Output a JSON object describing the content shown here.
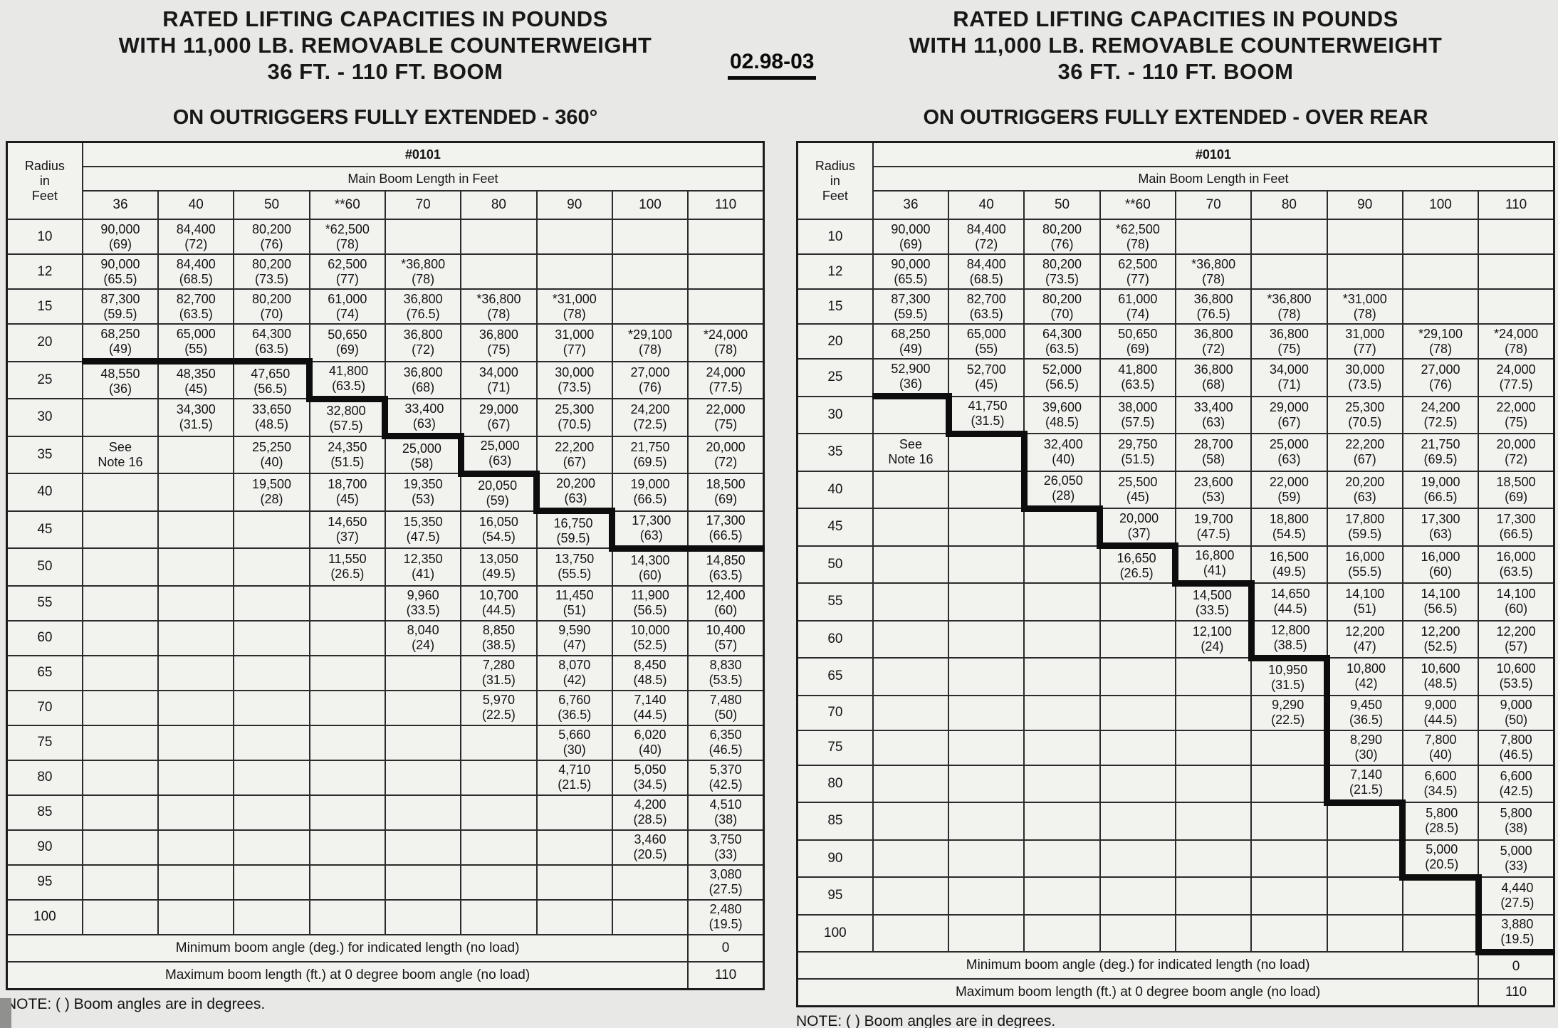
{
  "page_code": "02.98-03",
  "tables": [
    {
      "title_lines": [
        "RATED LIFTING CAPACITIES IN POUNDS",
        "WITH 11,000 LB. REMOVABLE COUNTERWEIGHT",
        "36 FT. - 110 FT. BOOM"
      ],
      "subtitle": "ON OUTRIGGERS FULLY EXTENDED - 360°",
      "corner_lines": [
        "Radius",
        "in",
        "Feet"
      ],
      "chart_header": "#0101",
      "boom_header": "Main Boom Length in Feet",
      "columns": [
        "36",
        "40",
        "50",
        "**60",
        "70",
        "80",
        "90",
        "100",
        "110"
      ],
      "col_keys": [
        "36",
        "40",
        "50",
        "60",
        "70",
        "80",
        "90",
        "100",
        "110"
      ],
      "rows": [
        {
          "radius": "10",
          "cells": [
            "90,000|(69)",
            "84,400|(72)",
            "80,200|(76)",
            "*62,500|(78)",
            null,
            null,
            null,
            null,
            null
          ]
        },
        {
          "radius": "12",
          "cells": [
            "90,000|(65.5)",
            "84,400|(68.5)",
            "80,200|(73.5)",
            "62,500|(77)",
            "*36,800|(78)",
            null,
            null,
            null,
            null
          ]
        },
        {
          "radius": "15",
          "cells": [
            "87,300|(59.5)",
            "82,700|(63.5)",
            "80,200|(70)",
            "61,000|(74)",
            "36,800|(76.5)",
            "*36,800|(78)",
            "*31,000|(78)",
            null,
            null
          ]
        },
        {
          "radius": "20",
          "cells": [
            "68,250|(49)",
            "65,000|(55)",
            "64,300|(63.5)",
            "50,650|(69)",
            "36,800|(72)",
            "36,800|(75)",
            "31,000|(77)",
            "*29,100|(78)",
            "*24,000|(78)"
          ]
        },
        {
          "radius": "25",
          "cells": [
            "48,550|(36)",
            "48,350|(45)",
            "47,650|(56.5)",
            "41,800|(63.5)",
            "36,800|(68)",
            "34,000|(71)",
            "30,000|(73.5)",
            "27,000|(76)",
            "24,000|(77.5)"
          ]
        },
        {
          "radius": "30",
          "cells": [
            null,
            "34,300|(31.5)",
            "33,650|(48.5)",
            "32,800|(57.5)",
            "33,400|(63)",
            "29,000|(67)",
            "25,300|(70.5)",
            "24,200|(72.5)",
            "22,000|(75)"
          ]
        },
        {
          "radius": "35",
          "cells": [
            "See|Note 16",
            null,
            "25,250|(40)",
            "24,350|(51.5)",
            "25,000|(58)",
            "25,000|(63)",
            "22,200|(67)",
            "21,750|(69.5)",
            "20,000|(72)"
          ]
        },
        {
          "radius": "40",
          "cells": [
            null,
            null,
            "19,500|(28)",
            "18,700|(45)",
            "19,350|(53)",
            "20,050|(59)",
            "20,200|(63)",
            "19,000|(66.5)",
            "18,500|(69)"
          ]
        },
        {
          "radius": "45",
          "cells": [
            null,
            null,
            null,
            "14,650|(37)",
            "15,350|(47.5)",
            "16,050|(54.5)",
            "16,750|(59.5)",
            "17,300|(63)",
            "17,300|(66.5)"
          ]
        },
        {
          "radius": "50",
          "cells": [
            null,
            null,
            null,
            "11,550|(26.5)",
            "12,350|(41)",
            "13,050|(49.5)",
            "13,750|(55.5)",
            "14,300|(60)",
            "14,850|(63.5)"
          ]
        },
        {
          "radius": "55",
          "cells": [
            null,
            null,
            null,
            null,
            "9,960|(33.5)",
            "10,700|(44.5)",
            "11,450|(51)",
            "11,900|(56.5)",
            "12,400|(60)"
          ]
        },
        {
          "radius": "60",
          "cells": [
            null,
            null,
            null,
            null,
            "8,040|(24)",
            "8,850|(38.5)",
            "9,590|(47)",
            "10,000|(52.5)",
            "10,400|(57)"
          ]
        },
        {
          "radius": "65",
          "cells": [
            null,
            null,
            null,
            null,
            null,
            "7,280|(31.5)",
            "8,070|(42)",
            "8,450|(48.5)",
            "8,830|(53.5)"
          ]
        },
        {
          "radius": "70",
          "cells": [
            null,
            null,
            null,
            null,
            null,
            "5,970|(22.5)",
            "6,760|(36.5)",
            "7,140|(44.5)",
            "7,480|(50)"
          ]
        },
        {
          "radius": "75",
          "cells": [
            null,
            null,
            null,
            null,
            null,
            null,
            "5,660|(30)",
            "6,020|(40)",
            "6,350|(46.5)"
          ]
        },
        {
          "radius": "80",
          "cells": [
            null,
            null,
            null,
            null,
            null,
            null,
            "4,710|(21.5)",
            "5,050|(34.5)",
            "5,370|(42.5)"
          ]
        },
        {
          "radius": "85",
          "cells": [
            null,
            null,
            null,
            null,
            null,
            null,
            null,
            "4,200|(28.5)",
            "4,510|(38)"
          ]
        },
        {
          "radius": "90",
          "cells": [
            null,
            null,
            null,
            null,
            null,
            null,
            null,
            "3,460|(20.5)",
            "3,750|(33)"
          ]
        },
        {
          "radius": "95",
          "cells": [
            null,
            null,
            null,
            null,
            null,
            null,
            null,
            null,
            "3,080|(27.5)"
          ]
        },
        {
          "radius": "100",
          "cells": [
            null,
            null,
            null,
            null,
            null,
            null,
            null,
            null,
            "2,480|(19.5)"
          ]
        }
      ],
      "footer": [
        {
          "label": "Minimum boom angle (deg.) for indicated length (no load)",
          "value": "0"
        },
        {
          "label": "Maximum boom length (ft.) at 0 degree boom angle (no load)",
          "value": "110"
        }
      ],
      "thick_bottom": [
        "20-36",
        "20-40",
        "20-50",
        "25-60",
        "30-70",
        "35-80",
        "40-90",
        "45-100",
        "45-110"
      ],
      "thick_right": [
        "25-50",
        "30-60",
        "35-70",
        "40-80",
        "45-90"
      ],
      "note": "NOTE: ( ) Boom angles are in degrees."
    },
    {
      "title_lines": [
        "RATED LIFTING CAPACITIES IN POUNDS",
        "WITH 11,000 LB. REMOVABLE COUNTERWEIGHT",
        "36 FT. - 110 FT. BOOM"
      ],
      "subtitle": "ON OUTRIGGERS FULLY EXTENDED - OVER REAR",
      "corner_lines": [
        "Radius",
        "in",
        "Feet"
      ],
      "chart_header": "#0101",
      "boom_header": "Main Boom Length in Feet",
      "columns": [
        "36",
        "40",
        "50",
        "**60",
        "70",
        "80",
        "90",
        "100",
        "110"
      ],
      "col_keys": [
        "36",
        "40",
        "50",
        "60",
        "70",
        "80",
        "90",
        "100",
        "110"
      ],
      "rows": [
        {
          "radius": "10",
          "cells": [
            "90,000|(69)",
            "84,400|(72)",
            "80,200|(76)",
            "*62,500|(78)",
            null,
            null,
            null,
            null,
            null
          ]
        },
        {
          "radius": "12",
          "cells": [
            "90,000|(65.5)",
            "84,400|(68.5)",
            "80,200|(73.5)",
            "62,500|(77)",
            "*36,800|(78)",
            null,
            null,
            null,
            null
          ]
        },
        {
          "radius": "15",
          "cells": [
            "87,300|(59.5)",
            "82,700|(63.5)",
            "80,200|(70)",
            "61,000|(74)",
            "36,800|(76.5)",
            "*36,800|(78)",
            "*31,000|(78)",
            null,
            null
          ]
        },
        {
          "radius": "20",
          "cells": [
            "68,250|(49)",
            "65,000|(55)",
            "64,300|(63.5)",
            "50,650|(69)",
            "36,800|(72)",
            "36,800|(75)",
            "31,000|(77)",
            "*29,100|(78)",
            "*24,000|(78)"
          ]
        },
        {
          "radius": "25",
          "cells": [
            "52,900|(36)",
            "52,700|(45)",
            "52,000|(56.5)",
            "41,800|(63.5)",
            "36,800|(68)",
            "34,000|(71)",
            "30,000|(73.5)",
            "27,000|(76)",
            "24,000|(77.5)"
          ]
        },
        {
          "radius": "30",
          "cells": [
            null,
            "41,750|(31.5)",
            "39,600|(48.5)",
            "38,000|(57.5)",
            "33,400|(63)",
            "29,000|(67)",
            "25,300|(70.5)",
            "24,200|(72.5)",
            "22,000|(75)"
          ]
        },
        {
          "radius": "35",
          "cells": [
            "See|Note 16",
            null,
            "32,400|(40)",
            "29,750|(51.5)",
            "28,700|(58)",
            "25,000|(63)",
            "22,200|(67)",
            "21,750|(69.5)",
            "20,000|(72)"
          ]
        },
        {
          "radius": "40",
          "cells": [
            null,
            null,
            "26,050|(28)",
            "25,500|(45)",
            "23,600|(53)",
            "22,000|(59)",
            "20,200|(63)",
            "19,000|(66.5)",
            "18,500|(69)"
          ]
        },
        {
          "radius": "45",
          "cells": [
            null,
            null,
            null,
            "20,000|(37)",
            "19,700|(47.5)",
            "18,800|(54.5)",
            "17,800|(59.5)",
            "17,300|(63)",
            "17,300|(66.5)"
          ]
        },
        {
          "radius": "50",
          "cells": [
            null,
            null,
            null,
            "16,650|(26.5)",
            "16,800|(41)",
            "16,500|(49.5)",
            "16,000|(55.5)",
            "16,000|(60)",
            "16,000|(63.5)"
          ]
        },
        {
          "radius": "55",
          "cells": [
            null,
            null,
            null,
            null,
            "14,500|(33.5)",
            "14,650|(44.5)",
            "14,100|(51)",
            "14,100|(56.5)",
            "14,100|(60)"
          ]
        },
        {
          "radius": "60",
          "cells": [
            null,
            null,
            null,
            null,
            "12,100|(24)",
            "12,800|(38.5)",
            "12,200|(47)",
            "12,200|(52.5)",
            "12,200|(57)"
          ]
        },
        {
          "radius": "65",
          "cells": [
            null,
            null,
            null,
            null,
            null,
            "10,950|(31.5)",
            "10,800|(42)",
            "10,600|(48.5)",
            "10,600|(53.5)"
          ]
        },
        {
          "radius": "70",
          "cells": [
            null,
            null,
            null,
            null,
            null,
            "9,290|(22.5)",
            "9,450|(36.5)",
            "9,000|(44.5)",
            "9,000|(50)"
          ]
        },
        {
          "radius": "75",
          "cells": [
            null,
            null,
            null,
            null,
            null,
            null,
            "8,290|(30)",
            "7,800|(40)",
            "7,800|(46.5)"
          ]
        },
        {
          "radius": "80",
          "cells": [
            null,
            null,
            null,
            null,
            null,
            null,
            "7,140|(21.5)",
            "6,600|(34.5)",
            "6,600|(42.5)"
          ]
        },
        {
          "radius": "85",
          "cells": [
            null,
            null,
            null,
            null,
            null,
            null,
            null,
            "5,800|(28.5)",
            "5,800|(38)"
          ]
        },
        {
          "radius": "90",
          "cells": [
            null,
            null,
            null,
            null,
            null,
            null,
            null,
            "5,000|(20.5)",
            "5,000|(33)"
          ]
        },
        {
          "radius": "95",
          "cells": [
            null,
            null,
            null,
            null,
            null,
            null,
            null,
            null,
            "4,440|(27.5)"
          ]
        },
        {
          "radius": "100",
          "cells": [
            null,
            null,
            null,
            null,
            null,
            null,
            null,
            null,
            "3,880|(19.5)"
          ]
        }
      ],
      "footer": [
        {
          "label": "Minimum boom angle (deg.) for indicated length (no load)",
          "value": "0"
        },
        {
          "label": "Maximum boom length (ft.) at 0 degree boom angle (no load)",
          "value": "110"
        }
      ],
      "thick_bottom": [
        "25-36",
        "30-40",
        "40-50",
        "45-60",
        "50-70",
        "60-80",
        "80-90",
        "90-100",
        "100-110"
      ],
      "thick_right": [
        "30-36",
        "35-40",
        "40-40",
        "45-50",
        "50-60",
        "55-70",
        "60-70",
        "65-80",
        "70-80",
        "75-80",
        "80-80",
        "85-90",
        "90-90",
        "95-100",
        "100-100"
      ],
      "note": "NOTE: ( ) Boom angles are in degrees."
    }
  ]
}
